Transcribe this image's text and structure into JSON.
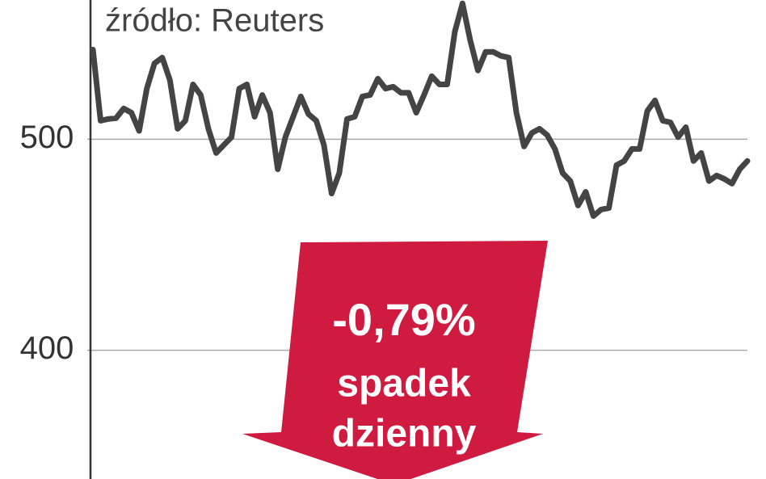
{
  "chart_data": {
    "type": "line",
    "source": "źródło: Reuters",
    "annotations": [
      "-0,79%",
      "spadek",
      "dzienny"
    ],
    "color": "#444444",
    "arrow_color": "#cf1b3f",
    "values": [
      542.5,
      508.8,
      509.6,
      510,
      514.6,
      512.6,
      504,
      524,
      536,
      538.7,
      528,
      505,
      508.8,
      526,
      521,
      505,
      493.5,
      497.3,
      501,
      524,
      526,
      510.7,
      521,
      512.6,
      485.8,
      501,
      510.7,
      520.3,
      511.9,
      508.8,
      497.3,
      474.3,
      484,
      509.6,
      510.7,
      520.3,
      521,
      528.7,
      524,
      524.9,
      522,
      522,
      512.6,
      521,
      529.9,
      526,
      526,
      551,
      564.4,
      547,
      532.6,
      541.4,
      541.4,
      539.5,
      538.7,
      512.6,
      496.6,
      503,
      505,
      502,
      495.4,
      484,
      480.2,
      468.6,
      475.1,
      463.6,
      466.7,
      467.4,
      487.7,
      489.7,
      495.4,
      495.4,
      513.4,
      518.4,
      508.8,
      508,
      501,
      505.7,
      489.7,
      493.5,
      480.2,
      482.8,
      481.2,
      479,
      485.8,
      489.7
    ],
    "ylim": [
      339,
      566
    ],
    "yticks": [
      400,
      500
    ],
    "grid": true
  }
}
